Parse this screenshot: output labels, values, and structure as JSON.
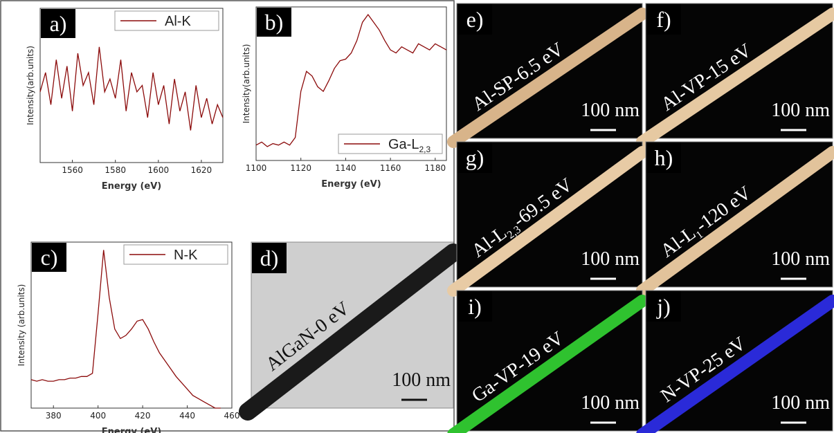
{
  "chart_data": [
    {
      "type": "line",
      "panel_label": "a)",
      "xlabel": "Energy (eV)",
      "ylabel": "Intensity(arb.units)",
      "legend": "upper right",
      "x": [
        1545,
        1547.5,
        1550,
        1552.5,
        1555,
        1557.5,
        1560,
        1562.5,
        1565,
        1567.5,
        1570,
        1572.5,
        1575,
        1577.5,
        1580,
        1582.5,
        1585,
        1587.5,
        1590,
        1592.5,
        1595,
        1597.5,
        1600,
        1602.5,
        1605,
        1607.5,
        1610,
        1612.5,
        1615,
        1617.5,
        1620,
        1622.5,
        1625,
        1627.5,
        1630
      ],
      "series": [
        {
          "name": "Al-K",
          "color": "#8b0a0a",
          "values": [
            0.55,
            0.7,
            0.45,
            0.8,
            0.5,
            0.75,
            0.4,
            0.85,
            0.6,
            0.7,
            0.45,
            0.9,
            0.55,
            0.65,
            0.5,
            0.8,
            0.4,
            0.7,
            0.55,
            0.6,
            0.35,
            0.7,
            0.45,
            0.6,
            0.3,
            0.65,
            0.4,
            0.55,
            0.25,
            0.6,
            0.35,
            0.5,
            0.3,
            0.45,
            0.35
          ]
        }
      ],
      "xlim": [
        1545,
        1630
      ],
      "xticks": [
        1560,
        1580,
        1600,
        1620
      ],
      "ylim": [
        0,
        1.2
      ]
    },
    {
      "type": "line",
      "panel_label": "b)",
      "xlabel": "Energy (eV)",
      "ylabel": "Intensity(arb.units)",
      "legend": "lower right",
      "x": [
        1100,
        1102.5,
        1105,
        1107.5,
        1110,
        1112.5,
        1115,
        1117.5,
        1120,
        1122.5,
        1125,
        1127.5,
        1130,
        1132.5,
        1135,
        1137.5,
        1140,
        1142.5,
        1145,
        1147.5,
        1150,
        1152.5,
        1155,
        1157.5,
        1160,
        1162.5,
        1165,
        1167.5,
        1170,
        1172.5,
        1175,
        1177.5,
        1180,
        1182.5,
        1185
      ],
      "series": [
        {
          "name": "Ga-L",
          "name_sub": "2,3",
          "color": "#8b0a0a",
          "values": [
            0.1,
            0.12,
            0.09,
            0.11,
            0.1,
            0.12,
            0.1,
            0.15,
            0.45,
            0.58,
            0.55,
            0.48,
            0.45,
            0.52,
            0.6,
            0.65,
            0.66,
            0.7,
            0.78,
            0.9,
            0.95,
            0.9,
            0.85,
            0.78,
            0.72,
            0.7,
            0.74,
            0.72,
            0.7,
            0.76,
            0.74,
            0.72,
            0.76,
            0.74,
            0.72
          ]
        }
      ],
      "xlim": [
        1100,
        1185
      ],
      "xticks": [
        1100,
        1120,
        1140,
        1160,
        1180
      ],
      "ylim": [
        0,
        1
      ]
    },
    {
      "type": "line",
      "panel_label": "c)",
      "xlabel": "Energy (eV)",
      "ylabel": "Intensity (arb.units)",
      "legend": "upper right",
      "x": [
        370,
        372.5,
        375,
        377.5,
        380,
        382.5,
        385,
        387.5,
        390,
        392.5,
        395,
        397.5,
        400,
        402.5,
        405,
        407.5,
        410,
        412.5,
        415,
        417.5,
        420,
        422.5,
        425,
        427.5,
        430,
        432.5,
        435,
        437.5,
        440,
        442.5,
        445,
        447.5,
        450,
        452.5,
        455
      ],
      "series": [
        {
          "name": "N-K",
          "color": "#8b0a0a",
          "values": [
            0.18,
            0.17,
            0.18,
            0.17,
            0.17,
            0.18,
            0.18,
            0.19,
            0.19,
            0.2,
            0.2,
            0.22,
            0.6,
            1.0,
            0.7,
            0.5,
            0.44,
            0.46,
            0.5,
            0.55,
            0.56,
            0.5,
            0.42,
            0.35,
            0.3,
            0.25,
            0.2,
            0.16,
            0.12,
            0.08,
            0.06,
            0.04,
            0.02,
            0.0,
            0.0
          ]
        }
      ],
      "xlim": [
        370,
        460
      ],
      "xticks": [
        380,
        400,
        420,
        440,
        460
      ],
      "ylim": [
        0,
        1.05
      ]
    }
  ],
  "images": [
    {
      "label": "d)",
      "caption": "AlGaN-0 eV",
      "scale": "100 nm",
      "color": "#1a1a1a",
      "background": "#cfcfcf"
    },
    {
      "label": "e)",
      "caption": "Al-SP-6.5 eV",
      "scale": "100 nm",
      "color": "#d8b48a",
      "background": "#050505"
    },
    {
      "label": "f)",
      "caption": "Al-VP-15 eV",
      "scale": "100 nm",
      "color": "#e6c9a2",
      "background": "#050505"
    },
    {
      "label": "g)",
      "caption": "Al-L",
      "caption_sub": "2,3",
      "caption_end": "-69.5 eV",
      "scale": "100 nm",
      "color": "#e8cba5",
      "background": "#050505"
    },
    {
      "label": "h)",
      "caption": "Al-L",
      "caption_sub": "1",
      "caption_end": "-120 eV",
      "scale": "100 nm",
      "color": "#e2c39b",
      "background": "#050505"
    },
    {
      "label": "i)",
      "caption": "Ga-VP-19 eV",
      "scale": "100 nm",
      "color": "#2fc22f",
      "background": "#050505"
    },
    {
      "label": "j)",
      "caption": "N-VP-25 eV",
      "scale": "100 nm",
      "color": "#2a2ad8",
      "background": "#050505"
    }
  ]
}
